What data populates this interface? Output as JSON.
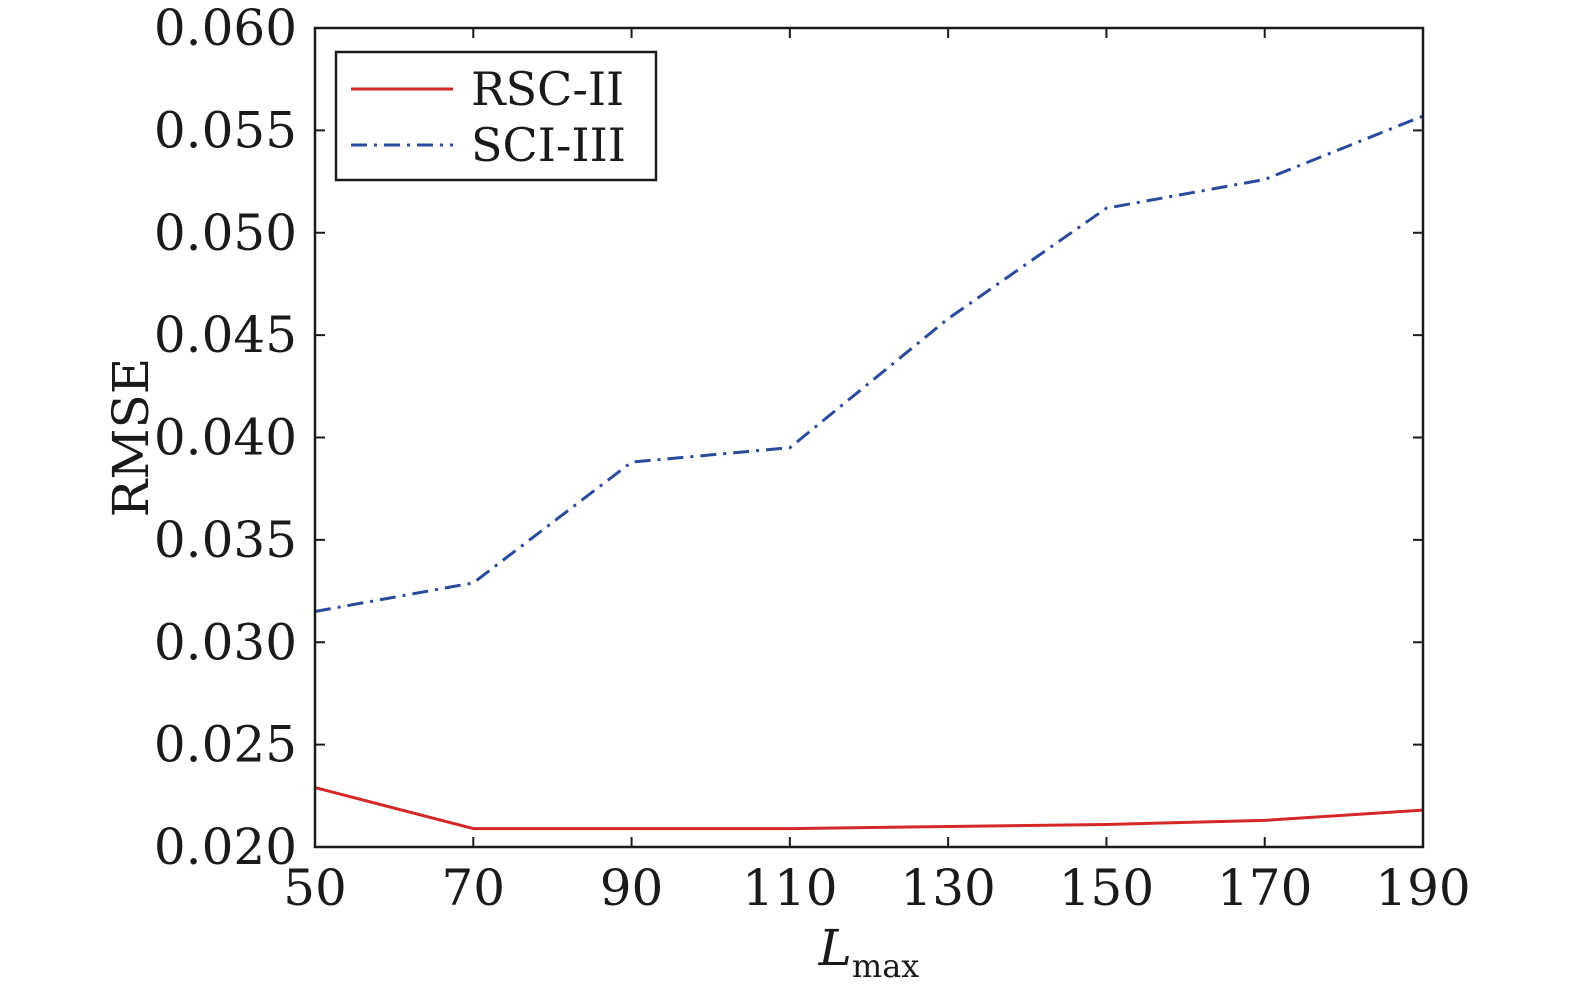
{
  "chart_data": {
    "type": "line",
    "x": [
      50,
      70,
      90,
      110,
      130,
      150,
      170,
      190
    ],
    "xticks": [
      "50",
      "70",
      "90",
      "110",
      "130",
      "150",
      "170",
      "190"
    ],
    "yticks": [
      "0.020",
      "0.025",
      "0.030",
      "0.035",
      "0.040",
      "0.045",
      "0.050",
      "0.055",
      "0.060"
    ],
    "xlim": [
      50,
      190
    ],
    "ylim": [
      0.02,
      0.06
    ],
    "xlabel": "L",
    "xlabel_sub": "max",
    "ylabel": "RMSE",
    "grid": false,
    "legend_position": "top-left",
    "series": [
      {
        "name": "RSC-II",
        "color": "#d62728",
        "style": "solid",
        "values": [
          0.0229,
          0.0209,
          0.0209,
          0.0209,
          0.021,
          0.0211,
          0.0213,
          0.0218
        ]
      },
      {
        "name": "SCI-III",
        "color": "#2a4a9b",
        "style": "dashdot",
        "values": [
          0.0315,
          0.0329,
          0.0388,
          0.0395,
          0.0458,
          0.0512,
          0.0526,
          0.0557
        ]
      }
    ]
  }
}
